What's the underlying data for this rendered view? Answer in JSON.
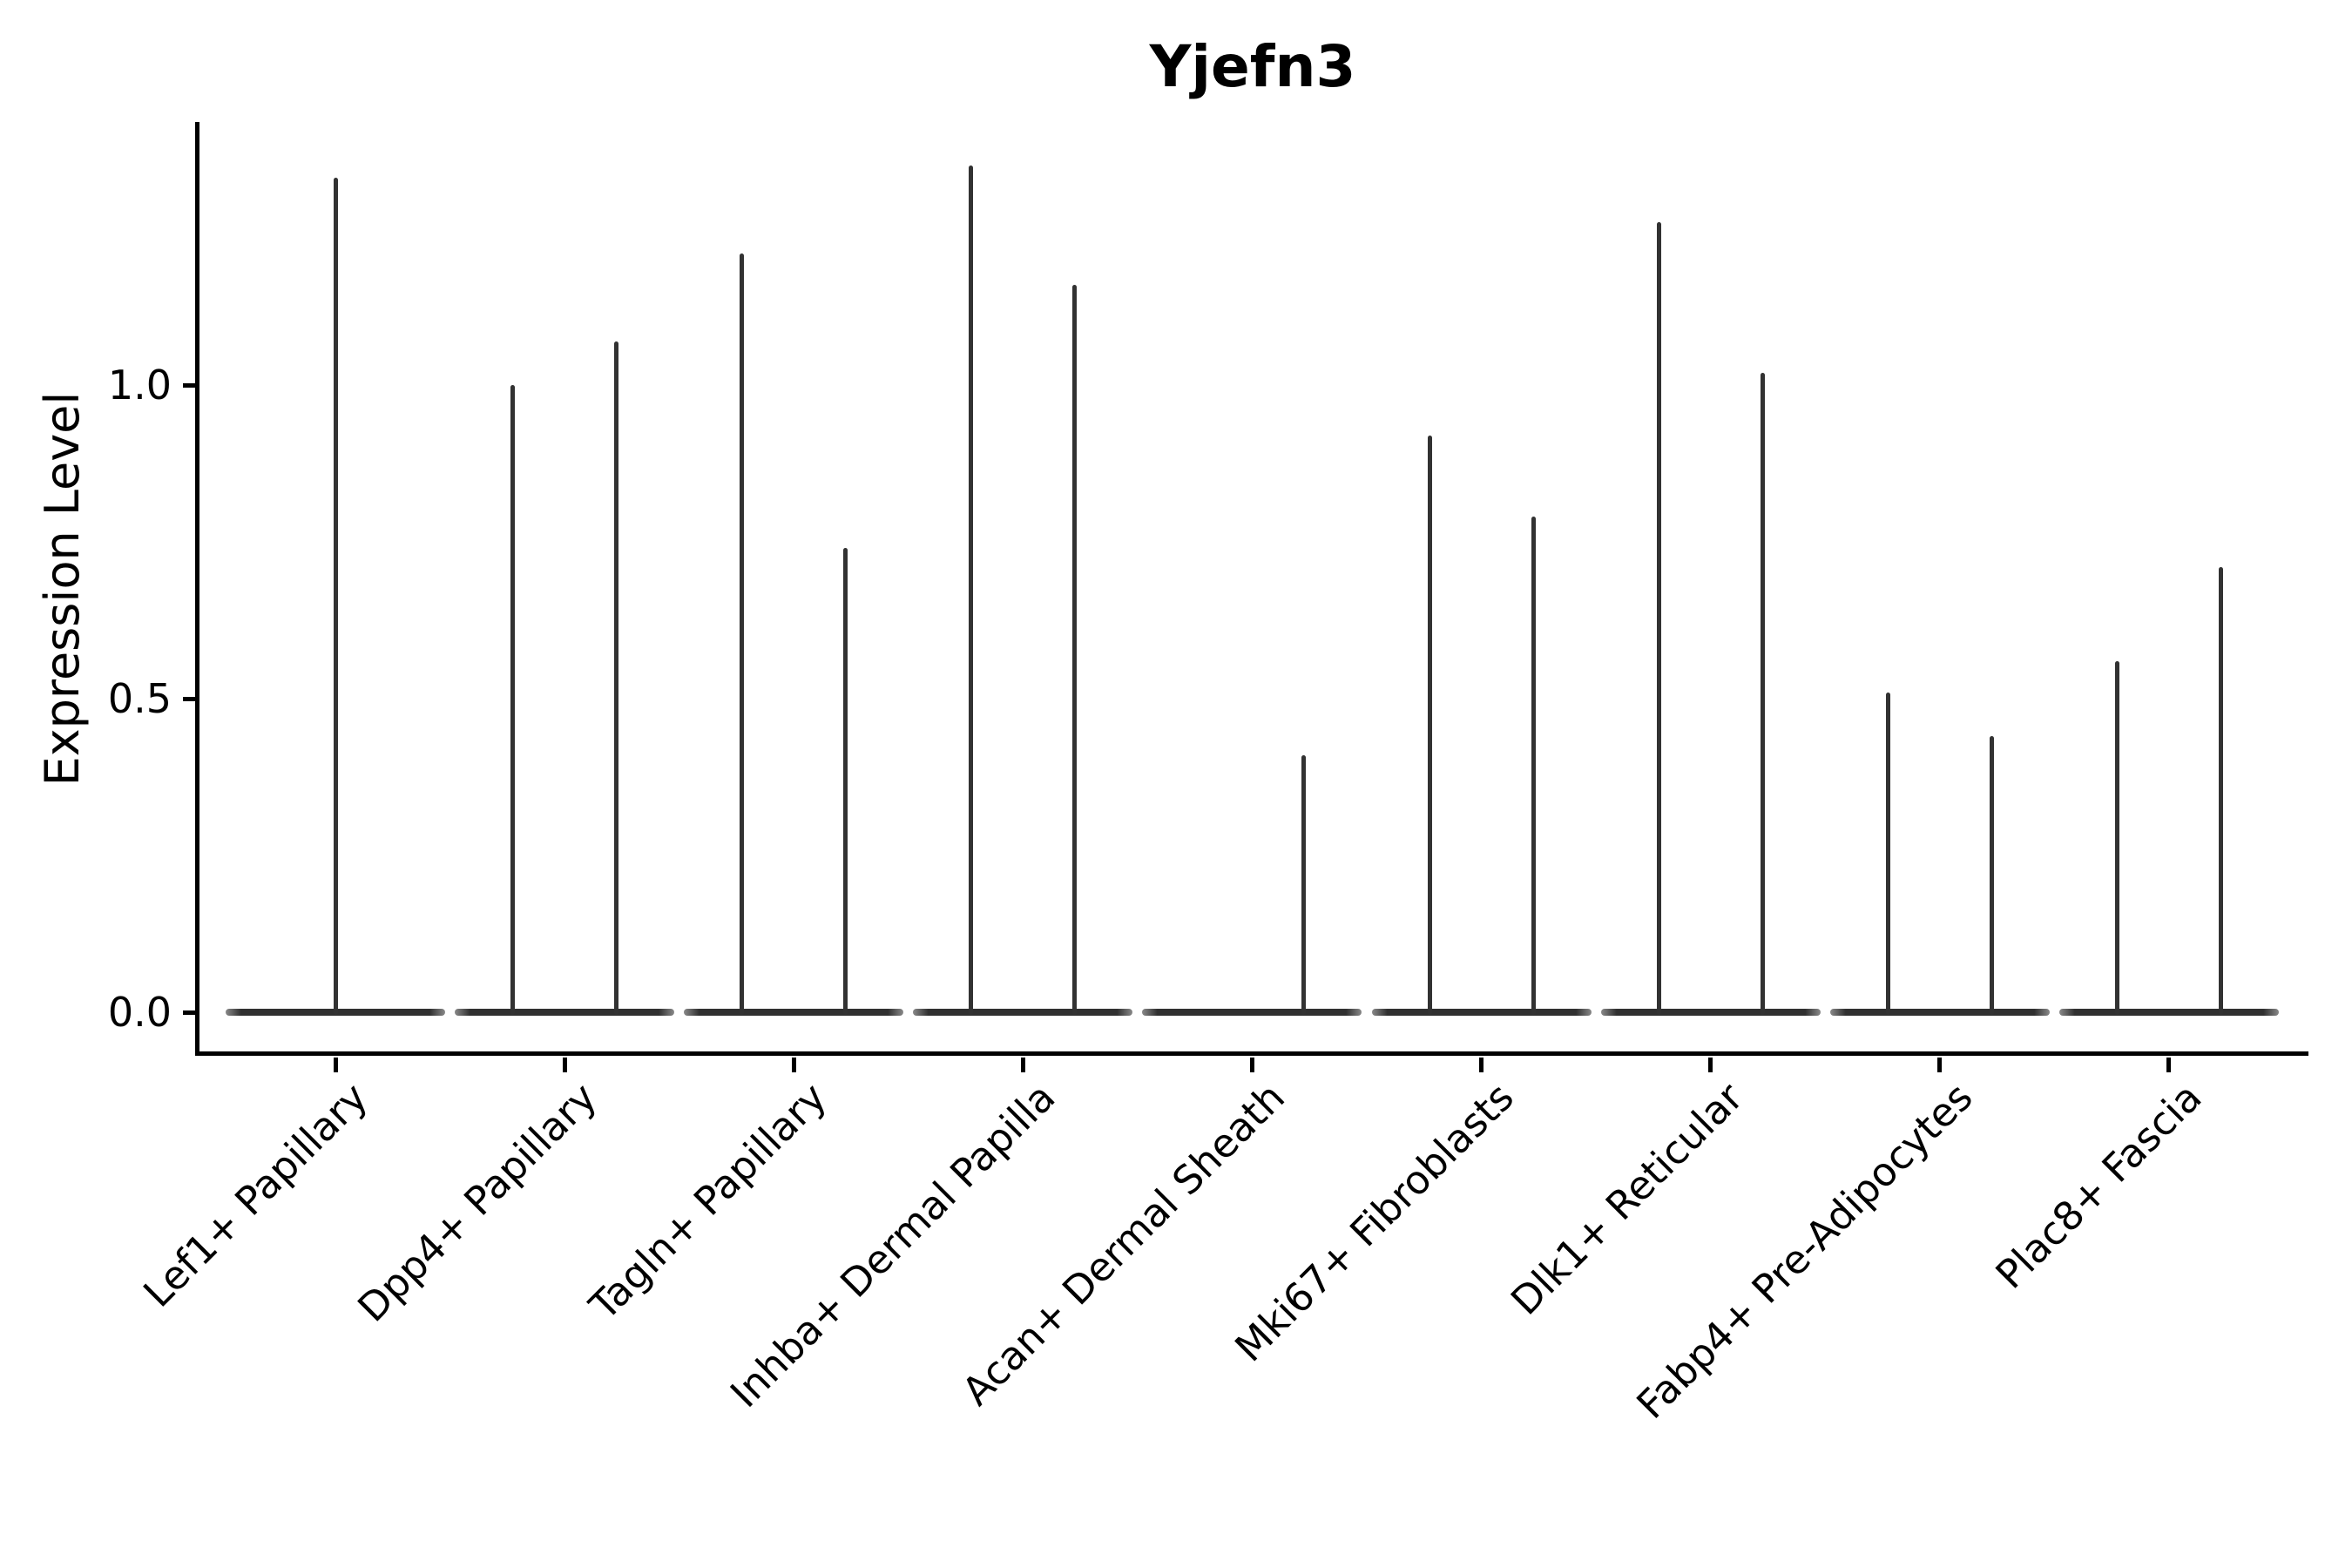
{
  "chart_data": {
    "type": "violin",
    "title": "Yjefn3",
    "xlabel": "",
    "ylabel": "Expression Level",
    "yticks": [
      {
        "label": "0.0",
        "value": 0.0
      },
      {
        "label": "0.5",
        "value": 0.5
      },
      {
        "label": "1.0",
        "value": 1.0
      }
    ],
    "ylim": [
      -0.07,
      1.42
    ],
    "grid": false,
    "legend": null,
    "baseline_value": 0.0,
    "colors": {
      "violin": "#323232",
      "axis": "#000000",
      "text": "#000000"
    },
    "categories": [
      {
        "label": "Lef1+ Papillary",
        "violins": [
          {
            "side": "center",
            "max": 1.33
          }
        ]
      },
      {
        "label": "Dpp4+ Papillary",
        "violins": [
          {
            "side": "left",
            "max": 1.0
          },
          {
            "side": "right",
            "max": 1.07
          }
        ]
      },
      {
        "label": "Tagln+ Papillary",
        "violins": [
          {
            "side": "left",
            "max": 1.21
          },
          {
            "side": "right",
            "max": 0.74
          }
        ]
      },
      {
        "label": "Inhba+ Dermal Papilla",
        "violins": [
          {
            "side": "left",
            "max": 1.35
          },
          {
            "side": "right",
            "max": 1.16
          }
        ]
      },
      {
        "label": "Acan+ Dermal Sheath",
        "violins": [
          {
            "side": "right",
            "max": 0.41
          }
        ]
      },
      {
        "label": "Mki67+ Fibroblasts",
        "violins": [
          {
            "side": "left",
            "max": 0.92
          },
          {
            "side": "right",
            "max": 0.79
          }
        ]
      },
      {
        "label": "Dlk1+ Reticular",
        "violins": [
          {
            "side": "left",
            "max": 1.26
          },
          {
            "side": "right",
            "max": 1.02
          }
        ]
      },
      {
        "label": "Fabp4+ Pre-Adipocytes",
        "violins": [
          {
            "side": "left",
            "max": 0.51
          },
          {
            "side": "right",
            "max": 0.44
          }
        ]
      },
      {
        "label": "Plac8+ Fascia",
        "violins": [
          {
            "side": "left",
            "max": 0.56
          },
          {
            "side": "right",
            "max": 0.71
          }
        ]
      }
    ]
  }
}
